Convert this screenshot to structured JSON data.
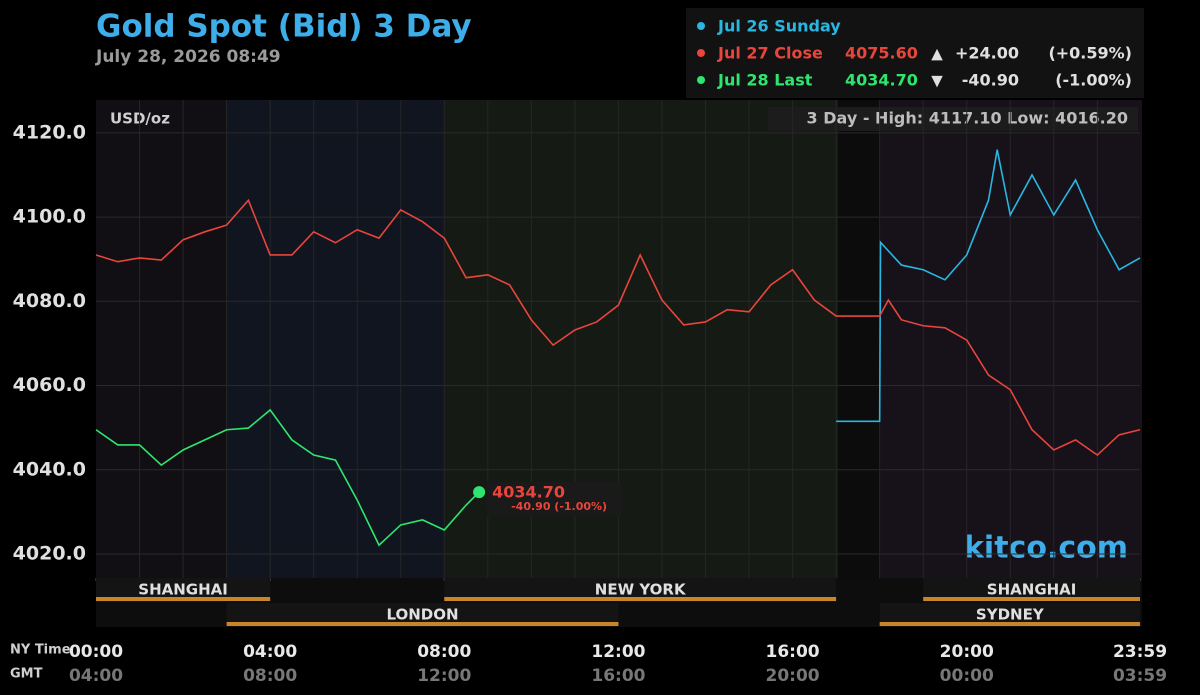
{
  "chart_data": {
    "type": "line",
    "title": "Gold Spot (Bid) 3 Day",
    "subtitle": "July 28, 2026 08:49",
    "unit_label": "USD/oz",
    "range_info": "3 Day - High: 4117.10  Low: 4016.20",
    "brand": "kitco.com",
    "x_axis_label": "NY Time",
    "x2_axis_label": "GMT",
    "xlim": [
      0,
      23.98
    ],
    "ylim": [
      4014.3,
      4127.8
    ],
    "xticks": [
      {
        "value": 0,
        "label": "00:00"
      },
      {
        "value": 4,
        "label": "04:00"
      },
      {
        "value": 8,
        "label": "08:00"
      },
      {
        "value": 12,
        "label": "12:00"
      },
      {
        "value": 16,
        "label": "16:00"
      },
      {
        "value": 20,
        "label": "20:00"
      },
      {
        "value": 23.98,
        "label": "23:59"
      }
    ],
    "gmt_ticks": [
      {
        "value": 0,
        "label": "04:00"
      },
      {
        "value": 4,
        "label": "08:00"
      },
      {
        "value": 8,
        "label": "12:00"
      },
      {
        "value": 12,
        "label": "16:00"
      },
      {
        "value": 16,
        "label": "20:00"
      },
      {
        "value": 20,
        "label": "00:00"
      },
      {
        "value": 23.98,
        "label": "03:59"
      }
    ],
    "yticks": [
      {
        "value": 4020,
        "label": "4020.0"
      },
      {
        "value": 4040,
        "label": "4040.0"
      },
      {
        "value": 4060,
        "label": "4060.0"
      },
      {
        "value": 4080,
        "label": "4080.0"
      },
      {
        "value": 4100,
        "label": "4100.0"
      },
      {
        "value": 4120,
        "label": "4120.0"
      }
    ],
    "legend": [
      {
        "name": "Jul 26 Sunday",
        "color": "#29b6e0"
      },
      {
        "name": "Jul 27 Close",
        "color": "#e8453c",
        "price": "4075.60",
        "arrow": "▲",
        "change": "+24.00",
        "percent": "(+0.59%)"
      },
      {
        "name": "Jul 28 Last",
        "color": "#2ee66e",
        "price": "4034.70",
        "arrow": "▼",
        "change": "-40.90",
        "percent": "(-1.00%)"
      }
    ],
    "last_label": {
      "price": "4034.70",
      "change": "-40.90 (-1.00%)"
    },
    "sessions": [
      {
        "name": "SHANGHAI",
        "start": 0,
        "end": 4,
        "row": 0
      },
      {
        "name": "LONDON",
        "start": 3,
        "end": 12,
        "row": 1
      },
      {
        "name": "NEW YORK",
        "start": 8,
        "end": 17,
        "row": 0
      },
      {
        "name": "SHANGHAI",
        "start": 19,
        "end": 23.98,
        "row": 0
      },
      {
        "name": "SYDNEY",
        "start": 18,
        "end": 23.98,
        "row": 1
      }
    ],
    "series": [
      {
        "name": "Jul 26 Sunday",
        "color": "#29b6e0",
        "x": [
          17,
          18,
          18.02,
          18.5,
          19,
          19.5,
          20,
          20.5,
          20.7,
          21,
          21.5,
          22,
          22.5,
          23,
          23.5,
          23.98
        ],
        "values": [
          4051.5,
          4051.5,
          4094,
          4088.6,
          4087.5,
          4085.1,
          4091,
          4104,
          4116,
          4100.5,
          4110,
          4100.5,
          4108.8,
          4097,
          4087.5,
          4090.3
        ]
      },
      {
        "name": "Jul 27 Close",
        "color": "#e8453c",
        "x": [
          0,
          0.5,
          1,
          1.5,
          2,
          2.5,
          3,
          3.5,
          4,
          4.5,
          5,
          5.5,
          6,
          6.5,
          7,
          7.5,
          8,
          8.5,
          9,
          9.5,
          10,
          10.5,
          11,
          11.5,
          12,
          12.5,
          13,
          13.5,
          14,
          14.5,
          15,
          15.5,
          16,
          16.5,
          17,
          17.5,
          18,
          18.2,
          18.5,
          19,
          19.5,
          20,
          20.5,
          21,
          21.5,
          22,
          22.5,
          23,
          23.5,
          23.98
        ],
        "values": [
          4091,
          4089.4,
          4090.3,
          4089.8,
          4094.6,
          4096.5,
          4098.1,
          4104,
          4091,
          4091,
          4096.5,
          4093.9,
          4097,
          4095,
          4101.7,
          4098.9,
          4095,
          4085.6,
          4086.3,
          4083.9,
          4075.6,
          4069.6,
          4073.2,
          4075.1,
          4079.1,
          4091,
          4080.3,
          4074.4,
          4075.1,
          4078,
          4077.5,
          4083.9,
          4087.5,
          4080.3,
          4076.5,
          4076.5,
          4076.5,
          4080.3,
          4075.6,
          4074.2,
          4073.7,
          4070.8,
          4062.5,
          4059,
          4049.5,
          4044.7,
          4047.1,
          4043.5,
          4048.3,
          4049.5
        ]
      },
      {
        "name": "Jul 28 Last",
        "color": "#2ee66e",
        "x": [
          0,
          0.5,
          1,
          1.5,
          2,
          2.5,
          3,
          3.5,
          4,
          4.5,
          5,
          5.5,
          6,
          6.5,
          7,
          7.5,
          8,
          8.5,
          8.8
        ],
        "values": [
          4049.5,
          4045.9,
          4045.9,
          4041.1,
          4044.7,
          4047.1,
          4049.5,
          4049.9,
          4054.2,
          4047.1,
          4043.5,
          4042.3,
          4032.8,
          4022.1,
          4026.9,
          4028.1,
          4025.7,
          4031.6,
          4034.7
        ]
      }
    ]
  }
}
